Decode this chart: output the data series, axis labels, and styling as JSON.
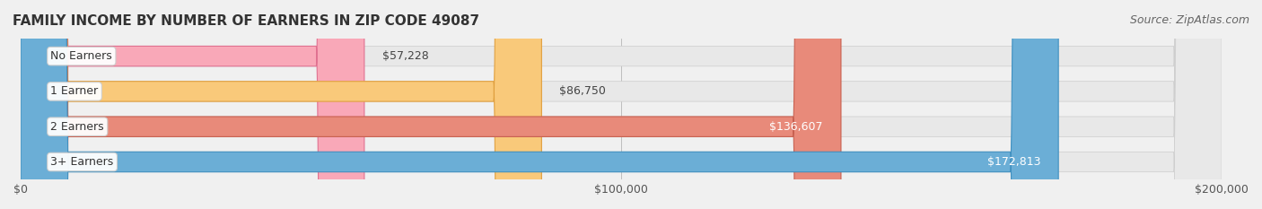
{
  "title": "FAMILY INCOME BY NUMBER OF EARNERS IN ZIP CODE 49087",
  "source": "Source: ZipAtlas.com",
  "categories": [
    "No Earners",
    "1 Earner",
    "2 Earners",
    "3+ Earners"
  ],
  "values": [
    57228,
    86750,
    136607,
    172813
  ],
  "labels": [
    "$57,228",
    "$86,750",
    "$136,607",
    "$172,813"
  ],
  "bar_colors": [
    "#f9a8b8",
    "#f9c97a",
    "#e88a7a",
    "#6baed6"
  ],
  "bar_edge_colors": [
    "#e07090",
    "#e0a040",
    "#c86050",
    "#4090c0"
  ],
  "bg_color": "#f0f0f0",
  "bar_bg_color": "#e8e8e8",
  "label_bg_color": "#ffffff",
  "xlim": [
    0,
    200000
  ],
  "xticks": [
    0,
    100000,
    200000
  ],
  "xticklabels": [
    "$0",
    "$100,000",
    "$200,000"
  ],
  "title_fontsize": 11,
  "source_fontsize": 9,
  "bar_label_fontsize": 9,
  "category_fontsize": 9,
  "axis_fontsize": 9
}
